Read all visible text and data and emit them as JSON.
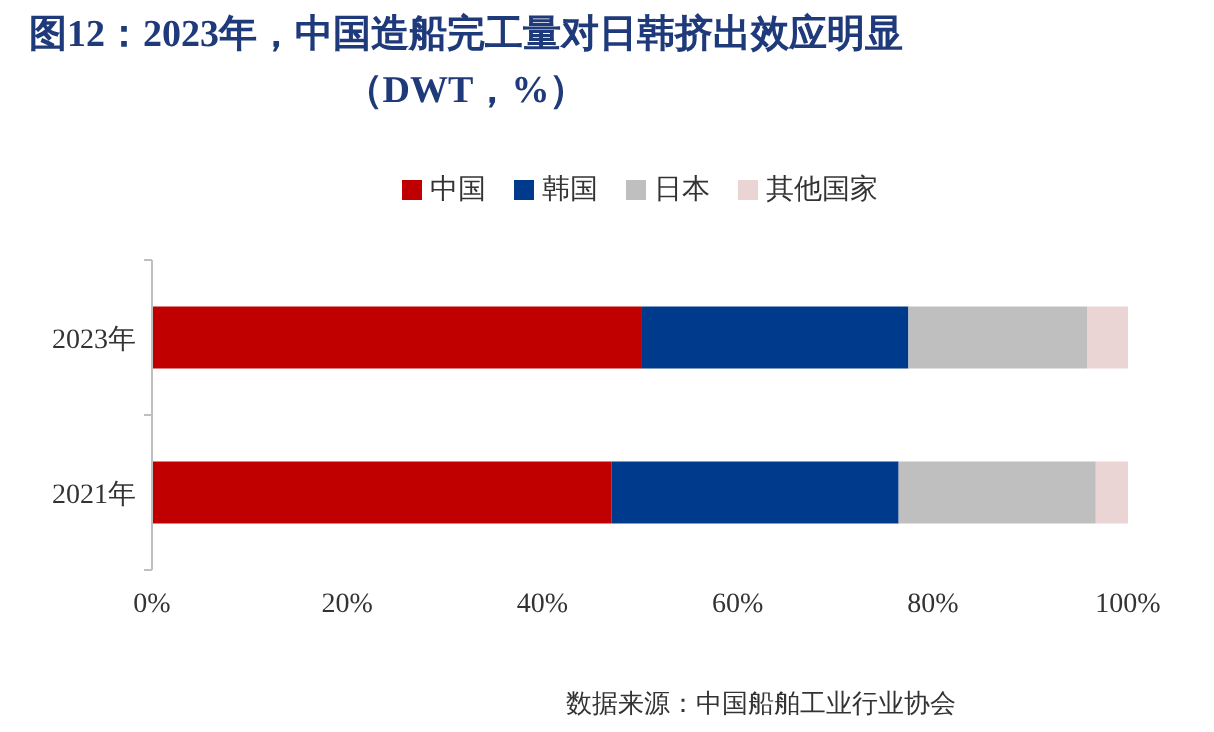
{
  "chart_data": {
    "type": "bar",
    "orientation": "horizontal",
    "stacked": true,
    "title": "图12：2023年，中国造船完工量对日韩挤出效应明显（DWT，%）",
    "categories": [
      "2023年",
      "2021年"
    ],
    "series": [
      {
        "name": "中国",
        "color": "#c00000",
        "values": [
          50.2,
          47.1
        ]
      },
      {
        "name": "韩国",
        "color": "#003a8c",
        "values": [
          27.3,
          29.4
        ]
      },
      {
        "name": "日本",
        "color": "#bfbfbf",
        "values": [
          18.3,
          20.2
        ]
      },
      {
        "name": "其他国家",
        "color": "#ead4d4",
        "values": [
          4.2,
          3.3
        ]
      }
    ],
    "xlim": [
      0,
      100
    ],
    "xticks": [
      {
        "value": 0,
        "label": "0%"
      },
      {
        "value": 20,
        "label": "20%"
      },
      {
        "value": 40,
        "label": "40%"
      },
      {
        "value": 60,
        "label": "60%"
      },
      {
        "value": 80,
        "label": "80%"
      },
      {
        "value": 100,
        "label": "100%"
      }
    ],
    "grid": false,
    "legend": "top",
    "annotations": [
      "数据来源：中国船舶工业行业协会"
    ]
  }
}
